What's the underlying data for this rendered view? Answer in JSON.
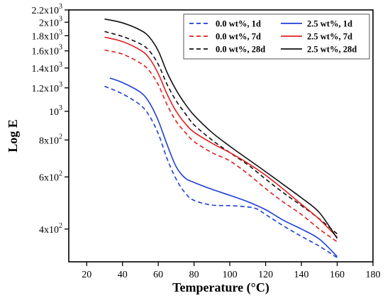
{
  "chart_data": {
    "type": "line",
    "title": "",
    "xlabel": "Temperature (°C)",
    "ylabel": "Log E",
    "y_scale": "log",
    "xlim": [
      10,
      180
    ],
    "ylim": [
      310,
      2200
    ],
    "grid": false,
    "legend_position": "top-right",
    "x_ticks": [
      20,
      40,
      60,
      80,
      100,
      120,
      140,
      160,
      180
    ],
    "y_ticks": [
      {
        "value": 400,
        "mant": "4x10",
        "exp": "2"
      },
      {
        "value": 600,
        "mant": "6x10",
        "exp": "2"
      },
      {
        "value": 800,
        "mant": "8x10",
        "exp": "2"
      },
      {
        "value": 1000,
        "mant": "10",
        "exp": "3"
      },
      {
        "value": 1200,
        "mant": "1.2x10",
        "exp": "3"
      },
      {
        "value": 1400,
        "mant": "1.4x10",
        "exp": "3"
      },
      {
        "value": 1600,
        "mant": "1.6x10",
        "exp": "3"
      },
      {
        "value": 1800,
        "mant": "1.8x10",
        "exp": "3"
      },
      {
        "value": 2000,
        "mant": "2x10",
        "exp": "3"
      },
      {
        "value": 2200,
        "mant": "2.2x10",
        "exp": "3"
      }
    ],
    "series": [
      {
        "name": "0.0 wt%, 1d",
        "color": "#1f3fd6",
        "dashed": true,
        "x": [
          30,
          40,
          50,
          55,
          60,
          65,
          70,
          75,
          80,
          90,
          100,
          110,
          115,
          120,
          130,
          140,
          150,
          160
        ],
        "y": [
          1215,
          1145,
          1050,
          965,
          840,
          690,
          590,
          530,
          500,
          482,
          480,
          475,
          468,
          448,
          410,
          378,
          350,
          320
        ]
      },
      {
        "name": "0.0 wt%, 7d",
        "color": "#e02020",
        "dashed": true,
        "x": [
          30,
          40,
          50,
          55,
          60,
          65,
          70,
          75,
          80,
          90,
          100,
          110,
          120,
          130,
          140,
          150,
          160
        ],
        "y": [
          1610,
          1560,
          1455,
          1370,
          1230,
          1050,
          925,
          850,
          790,
          725,
          680,
          615,
          548,
          493,
          448,
          400,
          362
        ]
      },
      {
        "name": "0.0 wt%, 28d",
        "color": "#111111",
        "dashed": true,
        "x": [
          30,
          40,
          50,
          55,
          60,
          65,
          70,
          75,
          80,
          90,
          100,
          110,
          120,
          130,
          140,
          150,
          160
        ],
        "y": [
          1860,
          1790,
          1690,
          1600,
          1440,
          1230,
          1085,
          985,
          900,
          800,
          725,
          660,
          590,
          530,
          480,
          433,
          385
        ]
      },
      {
        "name": "2.5 wt%, 1d",
        "color": "#1f3fd6",
        "dashed": false,
        "x": [
          33,
          40,
          50,
          55,
          60,
          65,
          70,
          75,
          80,
          90,
          100,
          110,
          120,
          130,
          140,
          150,
          160
        ],
        "y": [
          1295,
          1250,
          1160,
          1070,
          930,
          770,
          650,
          595,
          575,
          545,
          520,
          495,
          465,
          428,
          400,
          370,
          323
        ]
      },
      {
        "name": "2.5 wt%, 7d",
        "color": "#e02020",
        "dashed": false,
        "x": [
          30,
          40,
          50,
          55,
          60,
          65,
          70,
          75,
          80,
          90,
          100,
          110,
          120,
          130,
          140,
          150,
          160
        ],
        "y": [
          1780,
          1720,
          1610,
          1510,
          1340,
          1140,
          1000,
          910,
          850,
          780,
          725,
          668,
          608,
          545,
          485,
          432,
          375
        ]
      },
      {
        "name": "2.5 wt%, 28d",
        "color": "#111111",
        "dashed": false,
        "x": [
          30,
          40,
          50,
          55,
          60,
          65,
          70,
          75,
          80,
          90,
          100,
          110,
          120,
          130,
          140,
          150,
          160
        ],
        "y": [
          2050,
          1990,
          1880,
          1780,
          1600,
          1350,
          1180,
          1060,
          970,
          848,
          762,
          690,
          625,
          565,
          510,
          455,
          372
        ]
      }
    ]
  }
}
